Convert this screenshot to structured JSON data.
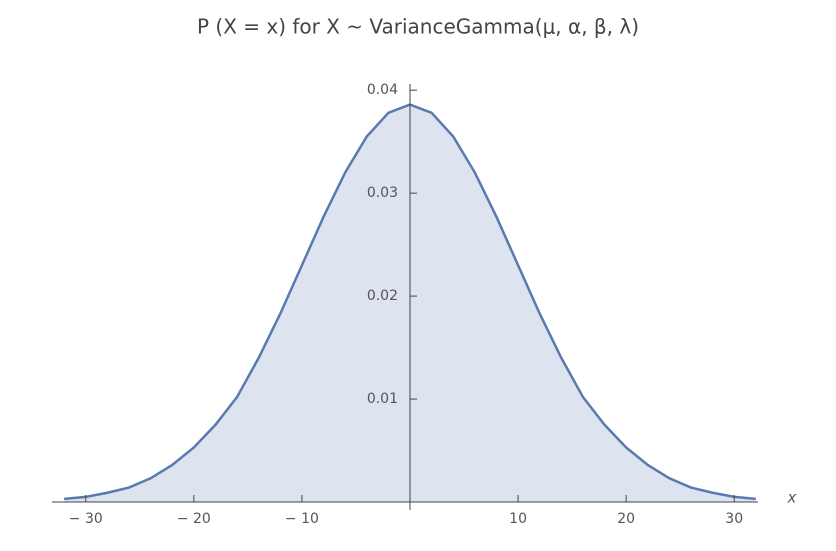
{
  "chart_data": {
    "type": "area",
    "title": "P (X = x)  for X ~ VarianceGamma(μ, α, β, λ)",
    "x_label": "x",
    "x": [
      -32,
      -30,
      -28,
      -26,
      -24,
      -22,
      -20,
      -18,
      -16,
      -14,
      -12,
      -10,
      -8,
      -6,
      -4,
      -2,
      0,
      2,
      4,
      6,
      8,
      10,
      12,
      14,
      16,
      18,
      20,
      22,
      24,
      26,
      28,
      30,
      32
    ],
    "values": [
      0.0003,
      0.0005,
      0.0009,
      0.0014,
      0.0023,
      0.0036,
      0.0053,
      0.0075,
      0.0102,
      0.014,
      0.0183,
      0.023,
      0.0277,
      0.032,
      0.0355,
      0.0378,
      0.0386,
      0.0378,
      0.0355,
      0.032,
      0.0277,
      0.023,
      0.0183,
      0.014,
      0.0102,
      0.0075,
      0.0053,
      0.0036,
      0.0023,
      0.0014,
      0.0009,
      0.0005,
      0.0003
    ],
    "color": "#5a79b0",
    "fill_color": "#dde3ef",
    "xlim": [
      -32.2,
      32.2
    ],
    "ylim": [
      0,
      0.0406
    ],
    "xticks": [
      {
        "value": -30,
        "label": "− 30"
      },
      {
        "value": -20,
        "label": "− 20"
      },
      {
        "value": -10,
        "label": "− 10"
      },
      10,
      20,
      30
    ],
    "yticks": [
      0.01,
      0.02,
      0.03,
      0.04
    ]
  }
}
